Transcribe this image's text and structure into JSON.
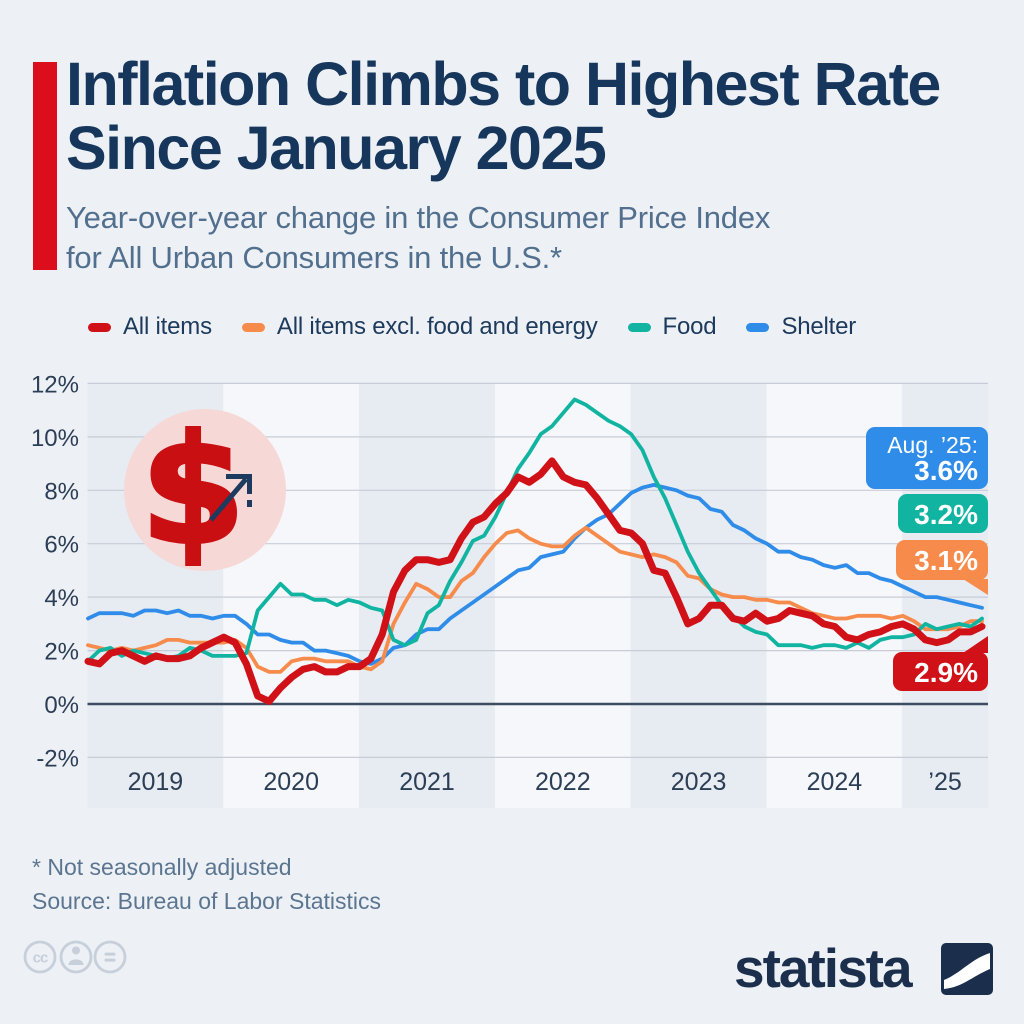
{
  "title": {
    "line1": "Inflation Climbs to Highest Rate",
    "line2": "Since January 2025"
  },
  "subtitle": {
    "line1": "Year-over-year change in the Consumer Price Index",
    "line2": "for All Urban Consumers in the U.S.*"
  },
  "chart_data": {
    "type": "line",
    "unit": "%",
    "x_start": "2019-01",
    "x_end": "2025-08",
    "x_year_labels": [
      "2019",
      "2020",
      "2021",
      "2022",
      "2023",
      "2024",
      "’25"
    ],
    "ylim": [
      -2,
      12
    ],
    "yticks": [
      {
        "v": 12,
        "label": "12%"
      },
      {
        "v": 10,
        "label": "10%"
      },
      {
        "v": 8,
        "label": "8%"
      },
      {
        "v": 6,
        "label": "6%"
      },
      {
        "v": 4,
        "label": "4%"
      },
      {
        "v": 2,
        "label": "2%"
      },
      {
        "v": 0,
        "label": "0%"
      },
      {
        "v": -2,
        "label": "-2%"
      }
    ],
    "grid": true,
    "legend_position": "top",
    "series": [
      {
        "name": "All items",
        "color": "#d01118",
        "width": 7,
        "values": [
          1.6,
          1.5,
          1.9,
          2.0,
          1.8,
          1.6,
          1.8,
          1.7,
          1.7,
          1.8,
          2.1,
          2.3,
          2.5,
          2.3,
          1.5,
          0.3,
          0.1,
          0.6,
          1.0,
          1.3,
          1.4,
          1.2,
          1.2,
          1.4,
          1.4,
          1.7,
          2.6,
          4.2,
          5.0,
          5.4,
          5.4,
          5.3,
          5.4,
          6.2,
          6.8,
          7.0,
          7.5,
          7.9,
          8.5,
          8.3,
          8.6,
          9.1,
          8.5,
          8.3,
          8.2,
          7.7,
          7.1,
          6.5,
          6.4,
          6.0,
          5.0,
          4.9,
          4.0,
          3.0,
          3.2,
          3.7,
          3.7,
          3.2,
          3.1,
          3.4,
          3.1,
          3.2,
          3.5,
          3.4,
          3.3,
          3.0,
          2.9,
          2.5,
          2.4,
          2.6,
          2.7,
          2.9,
          3.0,
          2.8,
          2.4,
          2.3,
          2.4,
          2.7,
          2.7,
          2.9
        ]
      },
      {
        "name": "All items excl. food and energy",
        "color": "#f78b4c",
        "width": 3.8,
        "values": [
          2.2,
          2.1,
          2.0,
          2.1,
          2.0,
          2.1,
          2.2,
          2.4,
          2.4,
          2.3,
          2.3,
          2.3,
          2.3,
          2.4,
          2.1,
          1.4,
          1.2,
          1.2,
          1.6,
          1.7,
          1.7,
          1.6,
          1.6,
          1.6,
          1.4,
          1.3,
          1.6,
          3.0,
          3.8,
          4.5,
          4.3,
          4.0,
          4.0,
          4.6,
          4.9,
          5.5,
          6.0,
          6.4,
          6.5,
          6.2,
          6.0,
          5.9,
          5.9,
          6.3,
          6.6,
          6.3,
          6.0,
          5.7,
          5.6,
          5.5,
          5.6,
          5.5,
          5.3,
          4.8,
          4.7,
          4.3,
          4.1,
          4.0,
          4.0,
          3.9,
          3.9,
          3.8,
          3.8,
          3.6,
          3.4,
          3.3,
          3.2,
          3.2,
          3.3,
          3.3,
          3.3,
          3.2,
          3.3,
          3.1,
          2.8,
          2.8,
          2.8,
          2.9,
          3.1,
          3.1
        ]
      },
      {
        "name": "Food",
        "color": "#10b4a1",
        "width": 3.8,
        "values": [
          1.6,
          2.0,
          2.1,
          1.8,
          2.0,
          1.9,
          1.8,
          1.7,
          1.8,
          2.1,
          2.0,
          1.8,
          1.8,
          1.8,
          1.9,
          3.5,
          4.0,
          4.5,
          4.1,
          4.1,
          3.9,
          3.9,
          3.7,
          3.9,
          3.8,
          3.6,
          3.5,
          2.4,
          2.2,
          2.4,
          3.4,
          3.7,
          4.6,
          5.3,
          6.1,
          6.3,
          7.0,
          7.9,
          8.8,
          9.4,
          10.1,
          10.4,
          10.9,
          11.4,
          11.2,
          10.9,
          10.6,
          10.4,
          10.1,
          9.5,
          8.5,
          7.7,
          6.7,
          5.7,
          4.9,
          4.3,
          3.7,
          3.3,
          2.9,
          2.7,
          2.6,
          2.2,
          2.2,
          2.2,
          2.1,
          2.2,
          2.2,
          2.1,
          2.3,
          2.1,
          2.4,
          2.5,
          2.5,
          2.6,
          3.0,
          2.8,
          2.9,
          3.0,
          2.9,
          3.2
        ]
      },
      {
        "name": "Shelter",
        "color": "#2f8ce9",
        "width": 3.8,
        "values": [
          3.2,
          3.4,
          3.4,
          3.4,
          3.3,
          3.5,
          3.5,
          3.4,
          3.5,
          3.3,
          3.3,
          3.2,
          3.3,
          3.3,
          3.0,
          2.6,
          2.6,
          2.4,
          2.3,
          2.3,
          2.0,
          2.0,
          1.9,
          1.8,
          1.6,
          1.5,
          1.7,
          2.1,
          2.2,
          2.6,
          2.8,
          2.8,
          3.2,
          3.5,
          3.8,
          4.1,
          4.4,
          4.7,
          5.0,
          5.1,
          5.5,
          5.6,
          5.7,
          6.2,
          6.6,
          6.9,
          7.1,
          7.5,
          7.9,
          8.1,
          8.2,
          8.1,
          8.0,
          7.8,
          7.7,
          7.3,
          7.2,
          6.7,
          6.5,
          6.2,
          6.0,
          5.7,
          5.7,
          5.5,
          5.4,
          5.2,
          5.1,
          5.2,
          4.9,
          4.9,
          4.7,
          4.6,
          4.4,
          4.2,
          4.0,
          4.0,
          3.9,
          3.8,
          3.7,
          3.6
        ]
      }
    ],
    "colors": {
      "band_dark": "#e7ebf2",
      "band_light": "#f5f7fa",
      "grid": "#c7cdd7",
      "zero_line": "#3d4c61",
      "axis_text": "#2c3e55"
    }
  },
  "callouts": {
    "header": "Aug. ’25:",
    "values": [
      {
        "series": "Shelter",
        "label": "3.6%",
        "color": "#2f8ce9"
      },
      {
        "series": "Food",
        "label": "3.2%",
        "color": "#10b4a1"
      },
      {
        "series": "All items excl. food and energy",
        "label": "3.1%",
        "color": "#f78b4c"
      },
      {
        "series": "All items",
        "label": "2.9%",
        "color": "#d01118"
      }
    ]
  },
  "annotation_icon": {
    "name": "dollar-rising-icon",
    "dollar_glyph": "$",
    "circle_color": "#f6d8d6",
    "dollar_color": "#c90f12",
    "arrow_color": "#1d3a5f"
  },
  "footnotes": {
    "line1": "* Not seasonally adjusted",
    "line2": "Source: Bureau of Labor Statistics"
  },
  "footer_icons": {
    "cc_glyph": "cc",
    "items": [
      "creative-commons",
      "attribution",
      "no-derivatives"
    ],
    "color": "#c6cfda"
  },
  "branding": {
    "logo_text": "statista",
    "logo_color": "#1b2f4c"
  }
}
